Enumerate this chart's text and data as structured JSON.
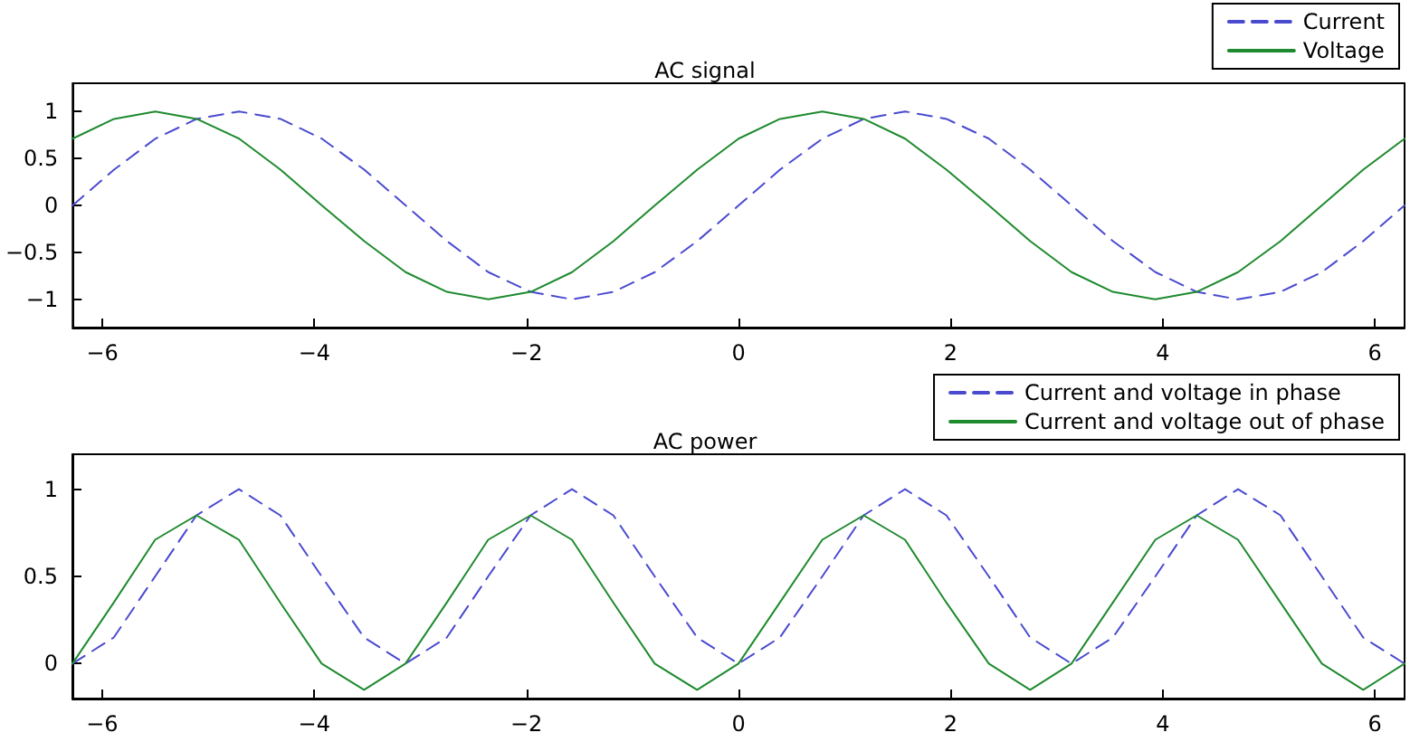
{
  "chart_data": [
    {
      "type": "line",
      "title": "AC signal",
      "xlim": [
        -6.28,
        6.28
      ],
      "xticks": [
        -6,
        -4,
        -2,
        0,
        2,
        4,
        6
      ],
      "ylim": [
        -1.3,
        1.3
      ],
      "yticks": [
        -1,
        -0.5,
        0,
        0.5,
        1
      ],
      "grid": false,
      "legend": "top right",
      "marker": "none",
      "x": [
        -6.28,
        -5.89,
        -5.5,
        -5.11,
        -4.71,
        -4.32,
        -3.93,
        -3.53,
        -3.14,
        -2.75,
        -2.36,
        -1.96,
        -1.57,
        -1.18,
        -0.79,
        -0.39,
        0,
        0.39,
        0.79,
        1.18,
        1.57,
        1.96,
        2.36,
        2.75,
        3.14,
        3.53,
        3.93,
        4.32,
        4.71,
        5.11,
        5.5,
        5.89,
        6.28
      ],
      "series": [
        {
          "name": "Current",
          "color": "#4a4ad0",
          "line_style": "dashed",
          "values": [
            0,
            0.38,
            0.71,
            0.92,
            1,
            0.92,
            0.71,
            0.38,
            0,
            -0.38,
            -0.71,
            -0.92,
            -1,
            -0.92,
            -0.71,
            -0.38,
            0,
            0.38,
            0.71,
            0.92,
            1,
            0.92,
            0.71,
            0.38,
            0,
            -0.38,
            -0.71,
            -0.92,
            -1,
            -0.92,
            -0.71,
            -0.38,
            0
          ]
        },
        {
          "name": "Voltage",
          "color": "#1e8a2e",
          "line_style": "solid",
          "values": [
            0.71,
            0.92,
            1,
            0.92,
            0.71,
            0.38,
            0,
            -0.38,
            -0.71,
            -0.92,
            -1,
            -0.92,
            -0.71,
            -0.38,
            0,
            0.38,
            0.71,
            0.92,
            1,
            0.92,
            0.71,
            0.38,
            0,
            -0.38,
            -0.71,
            -0.92,
            -1,
            -0.92,
            -0.71,
            -0.38,
            0,
            0.38,
            0.71
          ]
        }
      ]
    },
    {
      "type": "line",
      "title": "AC power",
      "xlim": [
        -6.28,
        6.28
      ],
      "xticks": [
        -6,
        -4,
        -2,
        0,
        2,
        4,
        6
      ],
      "ylim": [
        -0.2,
        1.2
      ],
      "yticks": [
        0,
        0.5,
        1
      ],
      "grid": false,
      "legend": "top right",
      "marker": "none",
      "x": [
        -6.28,
        -5.89,
        -5.5,
        -5.11,
        -4.71,
        -4.32,
        -3.93,
        -3.53,
        -3.14,
        -2.75,
        -2.36,
        -1.96,
        -1.57,
        -1.18,
        -0.79,
        -0.39,
        0,
        0.39,
        0.79,
        1.18,
        1.57,
        1.96,
        2.36,
        2.75,
        3.14,
        3.53,
        3.93,
        4.32,
        4.71,
        5.11,
        5.5,
        5.89,
        6.28
      ],
      "series": [
        {
          "name": "Current and voltage in phase",
          "color": "#4a4ad0",
          "line_style": "dashed",
          "values": [
            0,
            0.15,
            0.5,
            0.85,
            1,
            0.85,
            0.5,
            0.15,
            0,
            0.15,
            0.5,
            0.85,
            1,
            0.85,
            0.5,
            0.15,
            0,
            0.15,
            0.5,
            0.85,
            1,
            0.85,
            0.5,
            0.15,
            0,
            0.15,
            0.5,
            0.85,
            1,
            0.85,
            0.5,
            0.15,
            0
          ]
        },
        {
          "name": "Current and voltage out of phase",
          "color": "#1e8a2e",
          "line_style": "solid",
          "values": [
            0,
            0.35,
            0.71,
            0.85,
            0.71,
            0.35,
            0,
            -0.15,
            0,
            0.35,
            0.71,
            0.85,
            0.71,
            0.35,
            0,
            -0.15,
            0,
            0.35,
            0.71,
            0.85,
            0.71,
            0.35,
            0,
            -0.15,
            0,
            0.35,
            0.71,
            0.85,
            0.71,
            0.35,
            0,
            -0.15,
            0
          ]
        }
      ]
    }
  ]
}
